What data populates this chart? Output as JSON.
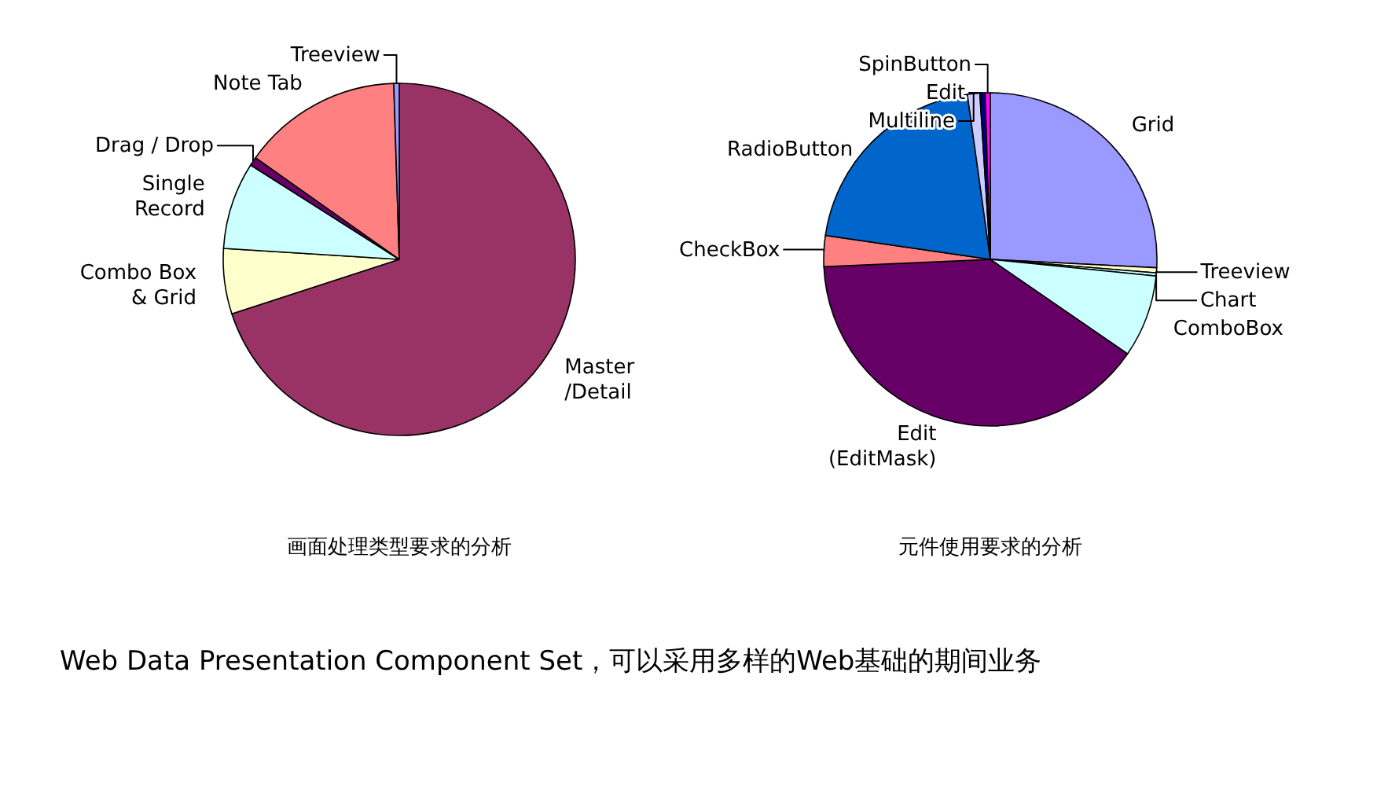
{
  "chart_data": [
    {
      "type": "pie",
      "title": "画面处理类型要求的分析",
      "categories": [
        "Master\n/Detail",
        "Combo Box\n& Grid",
        "Single\nRecord",
        "Drag / Drop",
        "Note Tab",
        "Treeview"
      ],
      "values": [
        70,
        6,
        8,
        0.8,
        14.7,
        0.5
      ],
      "colors": [
        "#993366",
        "#ffffcc",
        "#ccffff",
        "#660066",
        "#ff8080",
        "#9999ff"
      ]
    },
    {
      "type": "pie",
      "title": "元件使用要求的分析",
      "categories": [
        "Grid",
        "Treeview",
        "Chart",
        "ComboBox",
        "Edit\n(EditMask)",
        "CheckBox",
        "RadioButton",
        "Multiline",
        "Edit",
        "SpinButton"
      ],
      "values": [
        25.8,
        0.5,
        0.3,
        8,
        39.7,
        3,
        20.5,
        1.2,
        0.5,
        0.5
      ],
      "colors": [
        "#9999ff",
        "#ffffcc",
        "#ccffff",
        "#ccffff",
        "#660066",
        "#ff8080",
        "#0066cc",
        "#ccccff",
        "#000080",
        "#ff00ff"
      ],
      "annotations": [
        "Web Data Presentation Component Set，可以采用多样的Web基础的期间业务"
      ]
    }
  ]
}
